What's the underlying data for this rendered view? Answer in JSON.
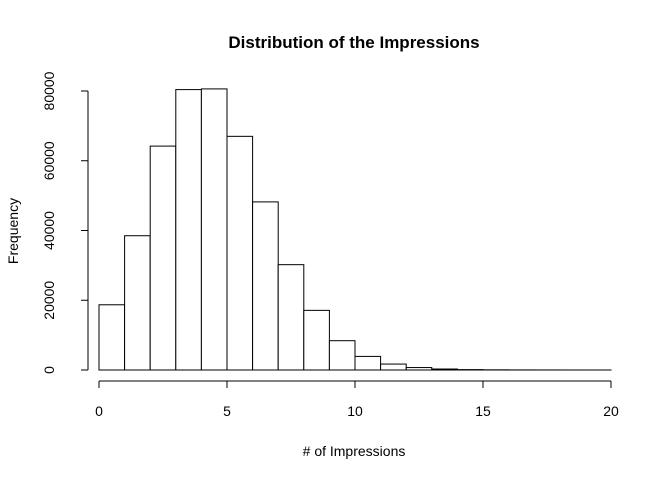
{
  "chart_data": {
    "type": "bar",
    "subtype": "histogram",
    "title": "Distribution of the Impressions",
    "xlabel": "# of Impressions",
    "ylabel": "Frequency",
    "bin_edges": [
      0,
      1,
      2,
      3,
      4,
      5,
      6,
      7,
      8,
      9,
      10,
      11,
      12,
      13,
      14,
      15,
      16,
      17,
      18,
      19,
      20
    ],
    "values": [
      18700,
      38500,
      64200,
      80400,
      80600,
      67000,
      48200,
      30200,
      17100,
      8400,
      3900,
      1700,
      700,
      280,
      110,
      50,
      25,
      12,
      6,
      3
    ],
    "xlim": [
      0,
      20
    ],
    "ylim": [
      0,
      80000
    ],
    "x_ticks": [
      0,
      5,
      10,
      15,
      20
    ],
    "y_ticks": [
      0,
      20000,
      40000,
      60000,
      80000
    ],
    "x_tick_labels": [
      "0",
      "5",
      "10",
      "15",
      "20"
    ],
    "y_tick_labels": [
      "0",
      "20000",
      "40000",
      "60000",
      "80000"
    ],
    "grid": false,
    "bar_fill": "#ffffff",
    "bar_stroke": "#000000"
  }
}
